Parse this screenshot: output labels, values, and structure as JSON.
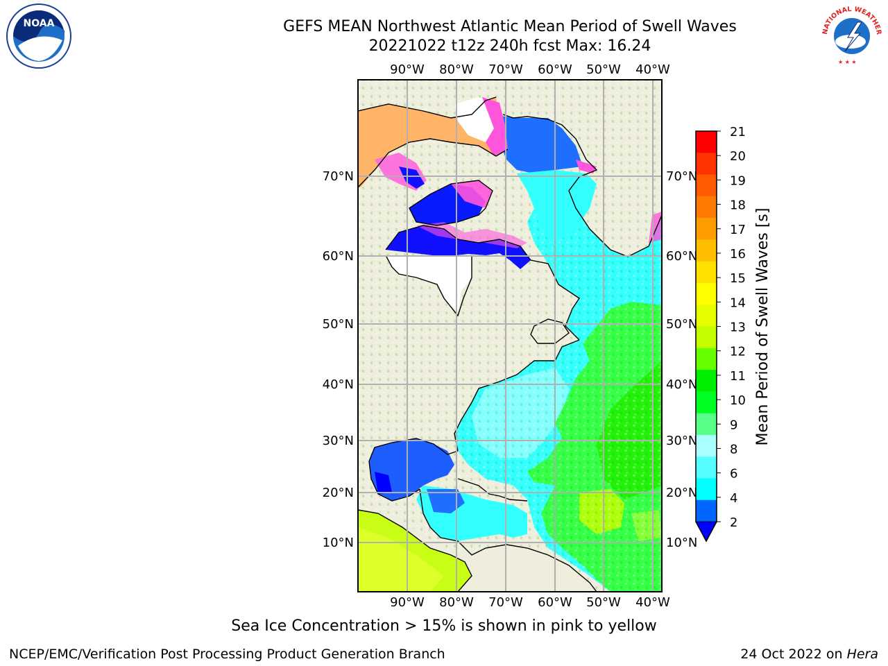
{
  "title": {
    "line1": "GEFS MEAN Northwest Atlantic Mean Period of Swell Waves",
    "line2": "20221022 t12z 240h fcst   Max: 16.24"
  },
  "map": {
    "lon_labels": [
      "90°W",
      "80°W",
      "70°W",
      "60°W",
      "50°W",
      "40°W"
    ],
    "lat_labels": [
      "70°N",
      "60°N",
      "50°N",
      "40°N",
      "30°N",
      "20°N",
      "10°N"
    ],
    "colors": {
      "land": "#efeedd",
      "ice_free_white": "#ffffff",
      "ice_pink": "#ff66dd",
      "ice_orange": "#ffb060",
      "grid": "#b0b0b0"
    }
  },
  "colorbar": {
    "label": "Mean Period of Swell Waves [s]",
    "ticks": [
      "21",
      "20",
      "19",
      "18",
      "17",
      "16",
      "15",
      "14",
      "13",
      "12",
      "11",
      "10",
      "9",
      "8",
      "6",
      "4",
      "2"
    ],
    "colors": [
      "#ff0000",
      "#ff3300",
      "#ff5a00",
      "#ff7a00",
      "#ff9d00",
      "#ffbf00",
      "#ffe100",
      "#ffff00",
      "#e6ff00",
      "#c3ff00",
      "#66ff00",
      "#00ee00",
      "#00ff22",
      "#55ff88",
      "#aaffff",
      "#55ffff",
      "#00ffff",
      "#0066ff"
    ],
    "under_color": "#0000ff"
  },
  "footer": {
    "ice_note": "Sea Ice Concentration > 15% is shown in pink to yellow",
    "credit": "NCEP/EMC/Verification Post Processing Product Generation Branch",
    "date_prefix": "24 Oct 2022 on ",
    "host": "Hera"
  },
  "logos": {
    "noaa_text": "NOAA",
    "nws_text": "NATIONAL WEATHER SERVICE"
  }
}
